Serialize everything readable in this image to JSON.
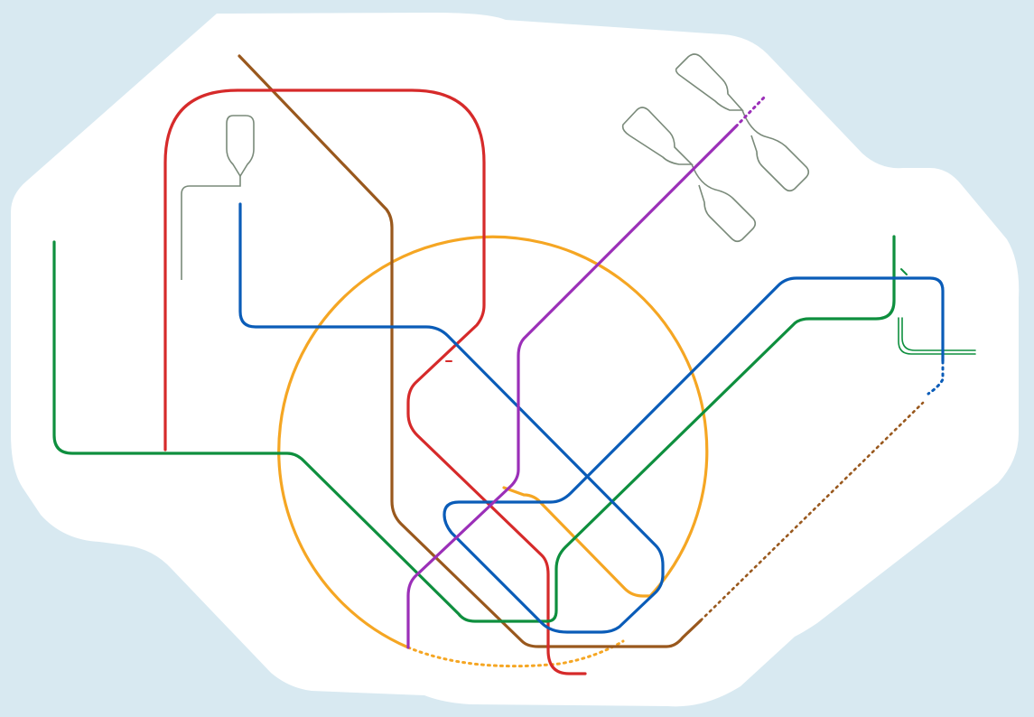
{
  "colors": {
    "sea": "#d8e9f1",
    "land": "#ffffff",
    "runway": "#7a8a7a",
    "dashed_green": "#1a8a3a"
  },
  "lines": [
    {
      "id": "red-line",
      "color": "#d62a2a"
    },
    {
      "id": "brown-line",
      "color": "#99581d"
    },
    {
      "id": "blue-line",
      "color": "#0a5cb8"
    },
    {
      "id": "green-line",
      "color": "#0e8f3e"
    },
    {
      "id": "orange-line",
      "color": "#f5a623"
    },
    {
      "id": "purple-line",
      "color": "#9b2fb8"
    }
  ]
}
